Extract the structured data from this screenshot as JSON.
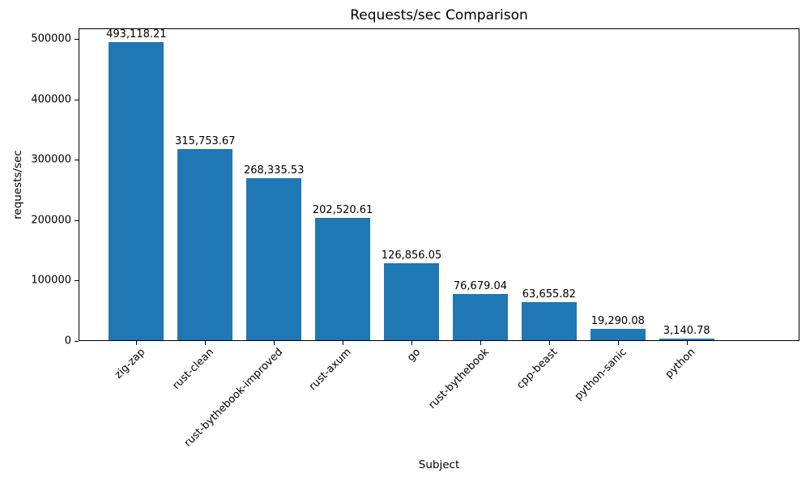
{
  "page": {
    "background": "#ffffff"
  },
  "chart_data": {
    "type": "bar",
    "title": "Requests/sec Comparison",
    "xlabel": "Subject",
    "ylabel": "requests/sec",
    "categories": [
      "zig-zap",
      "rust-clean",
      "rust-bythebook-improved",
      "rust-axum",
      "go",
      "rust-bythebook",
      "cpp-beast",
      "python-sanic",
      "python"
    ],
    "values": [
      493118.21,
      315753.67,
      268335.53,
      202520.61,
      126856.05,
      76679.04,
      63655.82,
      19290.08,
      3140.78
    ],
    "bar_labels": [
      "493,118.21",
      "315,753.67",
      "268,335.53",
      "202,520.61",
      "126,856.05",
      "76,679.04",
      "63,655.82",
      "19,290.08",
      "3,140.78"
    ],
    "yticks": [
      0,
      100000,
      200000,
      300000,
      400000,
      500000
    ],
    "ytick_labels": [
      "0",
      "100000",
      "200000",
      "300000",
      "400000",
      "500000"
    ],
    "ylim": [
      0,
      517800
    ],
    "xtick_rotation_deg": 45,
    "grid": false,
    "legend": null,
    "bar_color": "#1f77b4",
    "axis_color": "#000000",
    "text_color": "#000000"
  }
}
